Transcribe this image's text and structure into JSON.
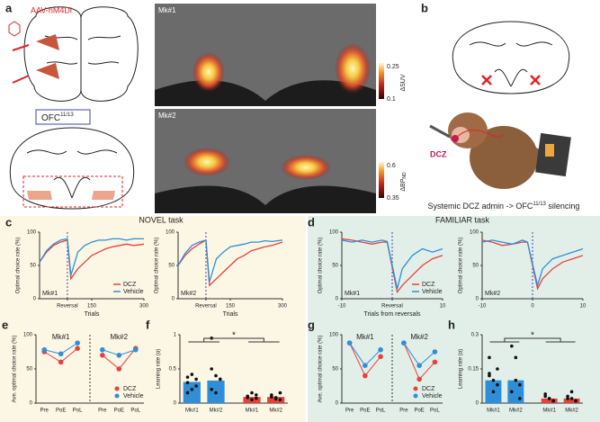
{
  "figure": {
    "a": {
      "panel": "a",
      "construct": "AAV-hM4Di",
      "region": "OFC",
      "region_sup": "11/13",
      "images": [
        {
          "label": "Mk#1",
          "scale_max": "0.25",
          "scale_min": "0.1",
          "scale_label": "ΔSUV"
        },
        {
          "label": "Mk#2",
          "scale_max": "0.6",
          "scale_min": "0.35",
          "scale_label": "ΔBP",
          "scale_label_sub": "ND"
        }
      ]
    },
    "b": {
      "panel": "b",
      "drug": "DCZ",
      "caption": "Systemic DCZ admin -> OFC",
      "caption_sup": "11/13",
      "caption_end": " silencing"
    }
  },
  "chart_data": [
    {
      "type": "line",
      "panel": "c",
      "title": "NOVEL task",
      "annotation": "Mk#1",
      "x_label": "Trials",
      "y_label": "Optimal choice rate (%)",
      "legend": "lower right",
      "x": [
        0,
        20,
        40,
        60,
        80,
        90,
        110,
        130,
        150,
        170,
        190,
        210,
        230,
        250,
        270,
        300
      ],
      "series": [
        {
          "name": "DCZ",
          "color": "#e8413c",
          "values": [
            55,
            70,
            80,
            85,
            88,
            30,
            45,
            55,
            65,
            70,
            75,
            78,
            80,
            82,
            80,
            82
          ]
        },
        {
          "name": "Vehicle",
          "color": "#2e8fd8",
          "values": [
            55,
            72,
            82,
            88,
            90,
            35,
            70,
            80,
            85,
            88,
            88,
            90,
            90,
            88,
            90,
            90
          ]
        }
      ],
      "xlim": [
        0,
        300
      ],
      "ylim": [
        0,
        100
      ],
      "vline": 80,
      "xticks": [
        {
          "value": 80,
          "label": "Reversal"
        },
        150,
        300
      ],
      "yticks": [
        0,
        50,
        100
      ]
    },
    {
      "type": "line",
      "annotation": "Mk#2",
      "x_label": "Trials",
      "y_label": "Optimal choice rate (%)",
      "x": [
        0,
        20,
        40,
        60,
        80,
        90,
        110,
        130,
        150,
        170,
        190,
        210,
        230,
        250,
        270,
        300
      ],
      "series": [
        {
          "name": "DCZ",
          "color": "#e8413c",
          "values": [
            50,
            65,
            75,
            82,
            88,
            20,
            30,
            40,
            50,
            60,
            65,
            72,
            75,
            78,
            80,
            85
          ]
        },
        {
          "name": "Vehicle",
          "color": "#2e8fd8",
          "values": [
            50,
            68,
            80,
            85,
            88,
            25,
            60,
            70,
            78,
            80,
            82,
            85,
            85,
            87,
            86,
            88
          ]
        }
      ],
      "xlim": [
        0,
        300
      ],
      "ylim": [
        0,
        100
      ],
      "vline": 80,
      "xticks": [
        {
          "value": 80,
          "label": "Reversal"
        },
        150,
        300
      ],
      "yticks": [
        0,
        50,
        100
      ]
    },
    {
      "type": "line",
      "panel": "d",
      "title": "FAMILIAR task",
      "annotation": "Mk#1",
      "x_label": "Trials from reversals",
      "y_label": "Optimal choice rate (%)",
      "legend": "lower right",
      "x": [
        -10,
        -8,
        -6,
        -4,
        -2,
        -1,
        1,
        2,
        4,
        6,
        8,
        10
      ],
      "series": [
        {
          "name": "DCZ",
          "color": "#e8413c",
          "values": [
            90,
            88,
            85,
            82,
            85,
            85,
            10,
            20,
            35,
            50,
            60,
            65
          ]
        },
        {
          "name": "Vehicle",
          "color": "#2e8fd8",
          "values": [
            88,
            85,
            88,
            85,
            88,
            86,
            15,
            45,
            65,
            75,
            70,
            75
          ]
        }
      ],
      "xlim": [
        -10,
        10
      ],
      "ylim": [
        0,
        100
      ],
      "vline": 0,
      "xticks": [
        -10,
        {
          "value": 0,
          "label": "Reversal"
        },
        10
      ],
      "yticks": [
        0,
        50,
        100
      ]
    },
    {
      "type": "line",
      "annotation": "Mk#2",
      "y_label": "Optimal choice rate (%)",
      "x": [
        -10,
        -8,
        -6,
        -4,
        -2,
        -1,
        1,
        2,
        4,
        6,
        8,
        10
      ],
      "series": [
        {
          "name": "DCZ",
          "color": "#e8413c",
          "values": [
            88,
            85,
            80,
            82,
            85,
            85,
            15,
            30,
            45,
            55,
            60,
            65
          ]
        },
        {
          "name": "Vehicle",
          "color": "#2e8fd8",
          "values": [
            85,
            88,
            85,
            82,
            88,
            85,
            20,
            45,
            60,
            65,
            70,
            75
          ]
        }
      ],
      "xlim": [
        -10,
        10
      ],
      "ylim": [
        0,
        100
      ],
      "vline": 0,
      "xticks": [
        -10,
        0,
        10
      ],
      "yticks": [
        0,
        50,
        100
      ]
    },
    {
      "type": "dotline",
      "panel": "e",
      "y_label": "Ave. optimal choice rate (%)",
      "legend": "lower right",
      "groups": [
        "Mk#1",
        "Mk#2"
      ],
      "categories": [
        "Pre",
        "PoE",
        "PoL",
        "Pre",
        "PoE",
        "PoL"
      ],
      "series": [
        {
          "name": "DCZ",
          "color": "#e8413c",
          "values": [
            75,
            60,
            80,
            70,
            50,
            80
          ]
        },
        {
          "name": "Vehicle",
          "color": "#2e8fd8",
          "values": [
            78,
            72,
            88,
            78,
            70,
            78
          ]
        }
      ],
      "ylim": [
        0,
        100
      ],
      "yticks": [
        0,
        50,
        100
      ]
    },
    {
      "type": "bar",
      "panel": "f",
      "y_label": "Learning rate (α)",
      "annotation": "*",
      "categories": [
        "Mk#1",
        "Mk#2",
        "Mk#1",
        "Mk#2"
      ],
      "values": [
        0.31,
        0.33,
        0.09,
        0.09
      ],
      "colors": [
        "#2e8fd8",
        "#2e8fd8",
        "#e8413c",
        "#e8413c"
      ],
      "points": [
        [
          0.3,
          0.42,
          0.25,
          0.15,
          0.2,
          0.35,
          0.38
        ],
        [
          0.95,
          0.4,
          0.35,
          0.2,
          0.15,
          0.35,
          0.5
        ],
        [
          0.1,
          0.05,
          0.12,
          0.08,
          0.15,
          0.07,
          0.1
        ],
        [
          0.12,
          0.06,
          0.15,
          0.1,
          0.08,
          0.05,
          0.09
        ]
      ],
      "ylim": [
        0,
        1
      ],
      "yticks": [
        0,
        0.5,
        1
      ]
    },
    {
      "type": "dotline",
      "panel": "g",
      "y_label": "Ave. optimal choice rate (%)",
      "legend": "lower right",
      "groups": [
        "Mk#1",
        "Mk#2"
      ],
      "categories": [
        "Pre",
        "PoE",
        "PoL",
        "Pre",
        "PoE",
        "PoL"
      ],
      "series": [
        {
          "name": "DCZ",
          "color": "#e8413c",
          "values": [
            88,
            40,
            68,
            88,
            35,
            60
          ]
        },
        {
          "name": "Vehicle",
          "color": "#2e8fd8",
          "values": [
            88,
            55,
            78,
            88,
            55,
            75
          ]
        }
      ],
      "ylim": [
        0,
        100
      ],
      "yticks": [
        0,
        50,
        100
      ]
    },
    {
      "type": "bar",
      "panel": "h",
      "y_label": "Learning rate (α)",
      "annotation": "*",
      "categories": [
        "Mk#1",
        "Mk#2",
        "Mk#1",
        "Mk#2"
      ],
      "values": [
        0.1,
        0.1,
        0.02,
        0.02
      ],
      "colors": [
        "#2e8fd8",
        "#2e8fd8",
        "#e8413c",
        "#e8413c"
      ],
      "points": [
        [
          0.2,
          0.1,
          0.08,
          0.12,
          0.05,
          0.15,
          0.13
        ],
        [
          0.25,
          0.2,
          0.08,
          0.05,
          0.1,
          0.02
        ],
        [
          0.03,
          0.02,
          0.01,
          0.04,
          0.02,
          0.01
        ],
        [
          0.02,
          0.05,
          0.01,
          0.03,
          0.02,
          0.01
        ]
      ],
      "ylim": [
        0,
        0.3
      ],
      "yticks": [
        0,
        0.15,
        0.3
      ]
    }
  ]
}
